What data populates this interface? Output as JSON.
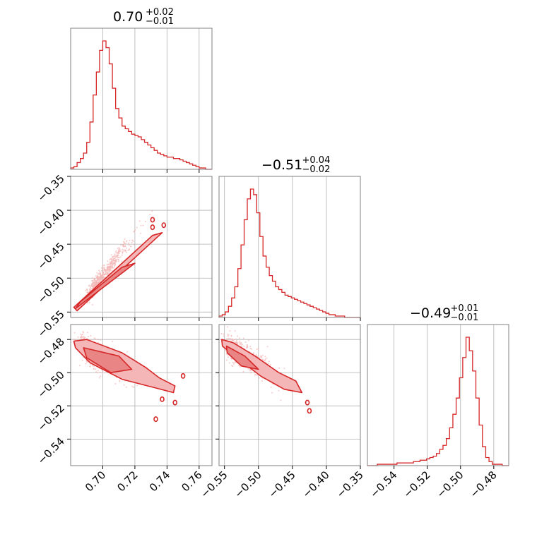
{
  "colors": {
    "accent": "#d62728",
    "fill_light": "#f4b6b6",
    "fill_mid": "#e98585",
    "grid": "#b0b0b0",
    "frame": "#808080"
  },
  "chart_data": {
    "type": "corner",
    "parameters": [
      {
        "title": {
          "base": "0.70",
          "plus": "+0.02",
          "minus": "−0.01"
        },
        "range": [
          0.68,
          0.768
        ],
        "ticks": [
          0.7,
          0.72,
          0.74,
          0.76
        ],
        "tick_labels": [
          "0.70",
          "0.72",
          "0.74",
          "0.76"
        ]
      },
      {
        "title": {
          "base": "−0.51",
          "plus": "+0.04",
          "minus": "−0.02"
        },
        "range": [
          -0.558,
          -0.35
        ],
        "ticks": [
          -0.55,
          -0.5,
          -0.45,
          -0.4,
          -0.35
        ],
        "tick_labels": [
          "−0.55",
          "−0.50",
          "−0.45",
          "−0.40",
          "−0.35"
        ]
      },
      {
        "title": {
          "base": "−0.49",
          "plus": "+0.01",
          "minus": "−0.01"
        },
        "range": [
          -0.556,
          -0.471
        ],
        "ticks": [
          -0.54,
          -0.52,
          -0.5,
          -0.48
        ],
        "tick_labels": [
          "−0.54",
          "−0.52",
          "−0.50",
          "−0.48"
        ]
      }
    ],
    "histograms": [
      {
        "param": 0,
        "bin_edges_range": [
          0.68,
          0.768
        ],
        "counts": [
          1,
          2,
          5,
          8,
          12,
          20,
          35,
          55,
          72,
          88,
          95,
          90,
          78,
          60,
          45,
          38,
          32,
          30,
          28,
          26,
          25,
          24,
          22,
          20,
          18,
          16,
          14,
          12,
          11,
          10,
          9,
          9,
          8,
          8,
          7,
          6,
          5,
          4,
          3,
          2,
          1,
          1,
          0,
          0
        ]
      },
      {
        "param": 1,
        "bin_edges_range": [
          -0.558,
          -0.35
        ],
        "counts": [
          1,
          2,
          4,
          8,
          14,
          22,
          35,
          52,
          70,
          85,
          92,
          88,
          75,
          58,
          44,
          36,
          30,
          26,
          22,
          20,
          18,
          16,
          15,
          14,
          13,
          12,
          11,
          10,
          9,
          8,
          7,
          6,
          5,
          4,
          3,
          2,
          2,
          1,
          1,
          1,
          0,
          0,
          0,
          0,
          0
        ]
      },
      {
        "param": 2,
        "bin_edges_range": [
          -0.556,
          -0.471
        ],
        "counts": [
          0,
          0,
          0,
          1,
          1,
          1,
          1,
          1,
          1,
          2,
          2,
          2,
          2,
          2,
          3,
          3,
          4,
          4,
          5,
          6,
          7,
          9,
          12,
          15,
          20,
          28,
          38,
          50,
          65,
          80,
          95,
          85,
          70,
          50,
          30,
          14,
          6,
          3,
          1,
          1,
          1,
          0,
          0
        ]
      }
    ],
    "pairs": [
      {
        "x_param": 0,
        "y_param": 1,
        "description_free": true
      },
      {
        "x_param": 0,
        "y_param": 2,
        "description_free": true
      },
      {
        "x_param": 1,
        "y_param": 2,
        "description_free": true
      }
    ],
    "grid": true
  }
}
